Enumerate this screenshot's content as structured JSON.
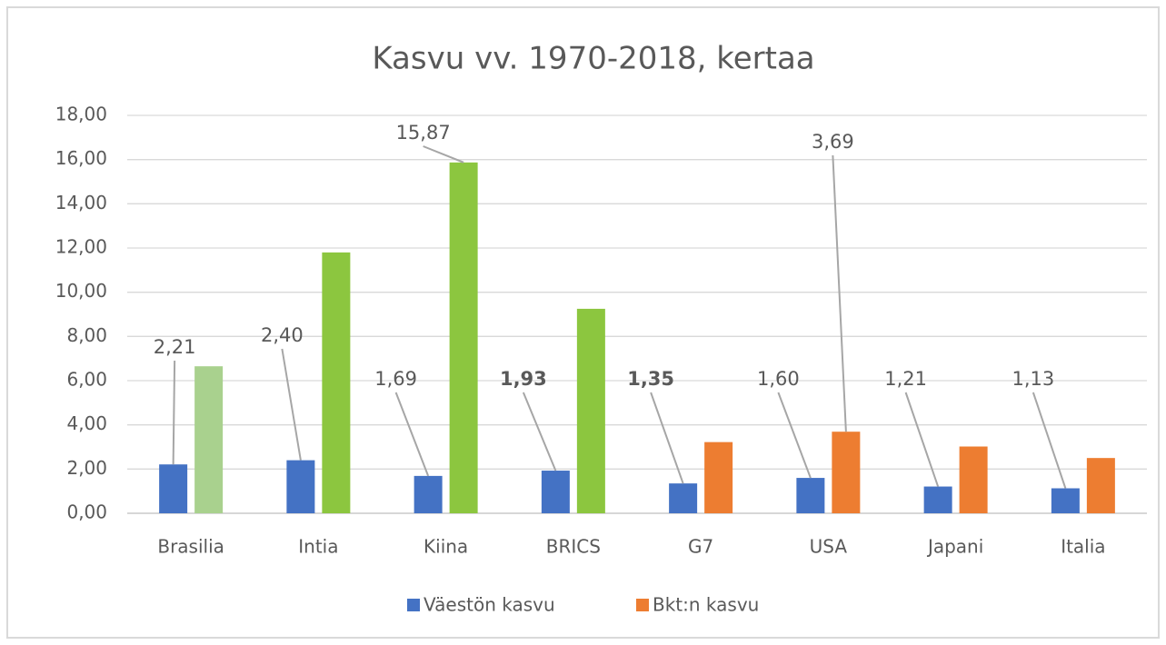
{
  "chart_data": {
    "type": "bar",
    "title": "Kasvu vv. 1970-2018, kertaa",
    "categories": [
      "Brasilia",
      "Intia",
      "Kiina",
      "BRICS",
      "G7",
      "USA",
      "Japani",
      "Italia"
    ],
    "series": [
      {
        "name": "Väestön kasvu",
        "color": "#4472c4",
        "values": [
          2.21,
          2.4,
          1.69,
          1.93,
          1.35,
          1.6,
          1.21,
          1.13
        ],
        "value_labels": [
          "2,21",
          "2,40",
          "1,69",
          "1,93",
          "1,35",
          "1,60",
          "1,21",
          "1,13"
        ],
        "value_label_bold": [
          false,
          false,
          false,
          true,
          true,
          false,
          false,
          false
        ]
      },
      {
        "name": "Bkt:n kasvu",
        "color": "#ed7d31",
        "colors": [
          "#a9d18e",
          "#8cc63f",
          "#8cc63f",
          "#8cc63f",
          "#ed7d31",
          "#ed7d31",
          "#ed7d31",
          "#ed7d31"
        ],
        "values": [
          6.65,
          11.8,
          15.87,
          9.25,
          3.22,
          3.69,
          3.02,
          2.5
        ],
        "value_labels": [
          null,
          null,
          "15,87",
          null,
          null,
          "3,69",
          null,
          null
        ]
      }
    ],
    "ylim": [
      0,
      18
    ],
    "yticks": [
      {
        "value": 0,
        "label": "0,00"
      },
      {
        "value": 2,
        "label": "2,00"
      },
      {
        "value": 4,
        "label": "4,00"
      },
      {
        "value": 6,
        "label": "6,00"
      },
      {
        "value": 8,
        "label": "8,00"
      },
      {
        "value": 10,
        "label": "10,00"
      },
      {
        "value": 12,
        "label": "12,00"
      },
      {
        "value": 14,
        "label": "14,00"
      },
      {
        "value": 16,
        "label": "16,00"
      },
      {
        "value": 18,
        "label": "18,00"
      }
    ],
    "grid": true,
    "legend": "bottom"
  }
}
